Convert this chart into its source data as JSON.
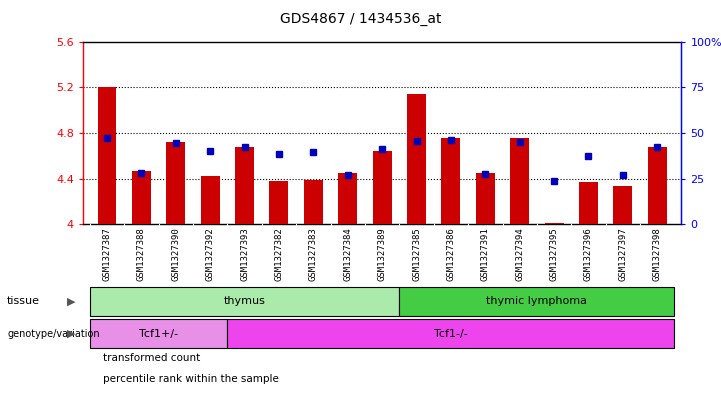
{
  "title": "GDS4867 / 1434536_at",
  "samples": [
    "GSM1327387",
    "GSM1327388",
    "GSM1327390",
    "GSM1327392",
    "GSM1327393",
    "GSM1327382",
    "GSM1327383",
    "GSM1327384",
    "GSM1327389",
    "GSM1327385",
    "GSM1327386",
    "GSM1327391",
    "GSM1327394",
    "GSM1327395",
    "GSM1327396",
    "GSM1327397",
    "GSM1327398"
  ],
  "red_values": [
    5.2,
    4.47,
    4.72,
    4.42,
    4.68,
    4.38,
    4.39,
    4.45,
    4.64,
    5.14,
    4.76,
    4.45,
    4.76,
    4.01,
    4.37,
    4.34,
    4.68
  ],
  "blue_values": [
    4.76,
    4.45,
    4.71,
    4.64,
    4.68,
    4.62,
    4.63,
    4.43,
    4.66,
    4.73,
    4.74,
    4.44,
    4.72,
    4.38,
    4.6,
    4.43,
    4.68
  ],
  "ylim_left": [
    4.0,
    5.6
  ],
  "ylim_right": [
    0,
    100
  ],
  "yticks_left": [
    4.0,
    4.4,
    4.8,
    5.2,
    5.6
  ],
  "ytick_labels_left": [
    "4",
    "4.4",
    "4.8",
    "5.2",
    "5.6"
  ],
  "yticks_right": [
    0,
    25,
    50,
    75,
    100
  ],
  "ytick_labels_right": [
    "0",
    "25",
    "50",
    "75",
    "100%"
  ],
  "hlines": [
    4.4,
    4.8,
    5.2
  ],
  "tissue_groups": [
    {
      "label": "thymus",
      "start": 0,
      "end": 9,
      "color": "#aaeaaa"
    },
    {
      "label": "thymic lymphoma",
      "start": 9,
      "end": 17,
      "color": "#44cc44"
    }
  ],
  "genotype_groups": [
    {
      "label": "Tcf1+/-",
      "start": 0,
      "end": 4,
      "color": "#e890e8"
    },
    {
      "label": "Tcf1-/-",
      "start": 4,
      "end": 17,
      "color": "#ee44ee"
    }
  ],
  "bar_color": "#cc0000",
  "blue_color": "#0000bb",
  "base": 4.0,
  "bar_width": 0.55,
  "xticklabel_bg": "#cccccc",
  "plot_bg": "#ffffff",
  "legend_items": [
    {
      "color": "#cc0000",
      "label": "transformed count"
    },
    {
      "color": "#0000bb",
      "label": "percentile rank within the sample"
    }
  ]
}
